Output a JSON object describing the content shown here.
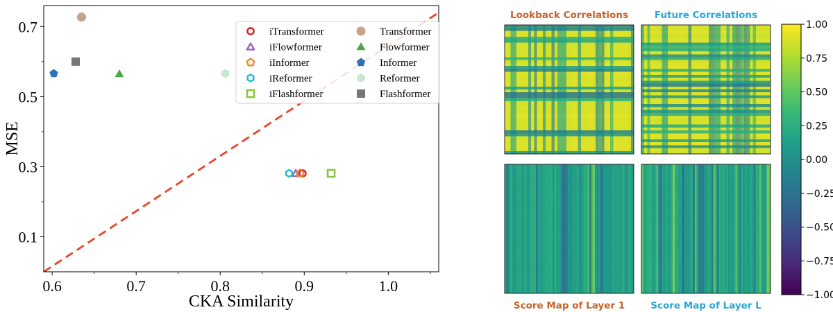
{
  "chart_data": [
    {
      "type": "scatter",
      "xlabel": "CKA Similarity",
      "ylabel": "MSE",
      "xlim": [
        0.59,
        1.06
      ],
      "ylim": [
        0.0,
        0.76
      ],
      "xticks": [
        0.6,
        0.7,
        0.8,
        0.9,
        1.0
      ],
      "xtick_labels": [
        "0.6",
        "0.7",
        "0.8",
        "0.9",
        "1.0"
      ],
      "yticks": [
        0.1,
        0.3,
        0.5,
        0.7
      ],
      "ytick_labels": [
        "0.1",
        "0.3",
        "0.5",
        "0.7"
      ],
      "reference_line": {
        "style": "dashed",
        "color": "#e8442a",
        "from": [
          0.59,
          0.0
        ],
        "to": [
          1.06,
          0.74
        ]
      },
      "legend_position": "top-right",
      "series": [
        {
          "name": "iTransformer",
          "marker": "ring",
          "color": "#d62728",
          "x": 0.898,
          "y": 0.281
        },
        {
          "name": "Transformer",
          "marker": "circle",
          "color": "#c9a28a",
          "x": 0.635,
          "y": 0.727
        },
        {
          "name": "iFlowformer",
          "marker": "triangle-open",
          "color": "#9467bd",
          "x": 0.89,
          "y": 0.281
        },
        {
          "name": "Flowformer",
          "marker": "triangle",
          "color": "#4aa84a",
          "x": 0.68,
          "y": 0.565
        },
        {
          "name": "iInformer",
          "marker": "pentagon-open",
          "color": "#f0882a",
          "x": 0.895,
          "y": 0.281
        },
        {
          "name": "Informer",
          "marker": "pentagon",
          "color": "#2e73b5",
          "x": 0.602,
          "y": 0.566
        },
        {
          "name": "iReformer",
          "marker": "hexagon-open",
          "color": "#17becf",
          "x": 0.882,
          "y": 0.281
        },
        {
          "name": "Reformer",
          "marker": "hexagon",
          "color": "#c8e8cc",
          "x": 0.806,
          "y": 0.566
        },
        {
          "name": "iFlashformer",
          "marker": "square-open",
          "color": "#8ac53e",
          "x": 0.932,
          "y": 0.281
        },
        {
          "name": "Flashformer",
          "marker": "square",
          "color": "#777777",
          "x": 0.628,
          "y": 0.6
        }
      ]
    },
    {
      "type": "heatmap",
      "panels": [
        {
          "title": "Lookback Correlations",
          "title_color": "#c8622a",
          "style": "correlation"
        },
        {
          "title": "Future Correlations",
          "title_color": "#2aa8d8",
          "style": "correlation"
        },
        {
          "title": "Score Map of Layer 1",
          "title_color": "#c8622a",
          "style": "score"
        },
        {
          "title": "Score Map of Layer L",
          "title_color": "#2aa8d8",
          "style": "score"
        }
      ],
      "colorbar": {
        "colormap": "viridis",
        "range": [
          -1.0,
          1.0
        ],
        "ticks": [
          1.0,
          0.75,
          0.5,
          0.25,
          0.0,
          -0.25,
          -0.5,
          -0.75,
          -1.0
        ],
        "tick_labels": [
          "1.00",
          "0.75",
          "0.50",
          "0.25",
          "0.00",
          "−0.25",
          "−0.50",
          "−0.75",
          "−1.00"
        ]
      }
    }
  ]
}
